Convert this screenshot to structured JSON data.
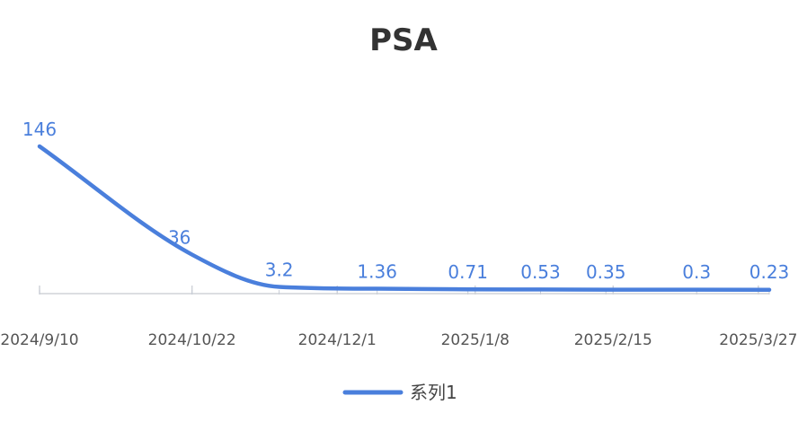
{
  "chart_data": {
    "type": "line",
    "title": "PSA",
    "xlabel": "",
    "ylabel": "",
    "x": [
      "2024/9/10",
      "2024/10/22",
      "2024/11/15",
      "2024/12/12",
      "2025/1/6",
      "2025/1/26",
      "2025/2/13",
      "2025/3/10",
      "2025/3/30"
    ],
    "series": [
      {
        "name": "系列1",
        "values": [
          146,
          36,
          3.2,
          1.36,
          0.71,
          0.53,
          0.35,
          0.3,
          0.23
        ],
        "color": "#4a7fdc"
      }
    ],
    "data_labels": [
      "146",
      "36",
      "3.2",
      "1.36",
      "0.71",
      "0.53",
      "0.35",
      "0.3",
      "0.23"
    ],
    "x_ticks": [
      "2024/9/10",
      "2024/10/22",
      "2024/12/1",
      "2025/1/8",
      "2025/2/15",
      "2025/3/27"
    ],
    "ylim": [
      0,
      146
    ],
    "smooth": true,
    "grid": false,
    "y_axis_visible": false,
    "legend_position": "bottom"
  }
}
